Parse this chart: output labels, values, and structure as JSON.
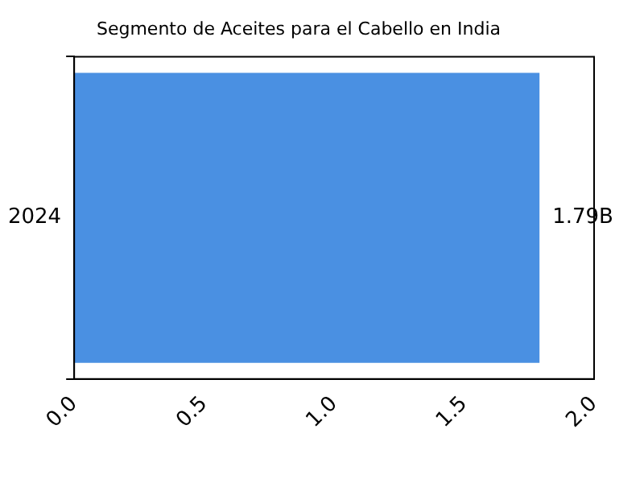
{
  "chart_data": {
    "type": "bar",
    "orientation": "horizontal",
    "title": "Segmento de Aceites para el Cabello en India",
    "categories": [
      "2024"
    ],
    "values": [
      1.79
    ],
    "color": "#4a90e2",
    "value_labels": [
      "1.79B"
    ],
    "xlim": [
      0,
      2
    ],
    "xticks": [
      {
        "value": 0,
        "label": "0.0"
      },
      {
        "value": 0.5,
        "label": "0.5"
      },
      {
        "value": 1,
        "label": "1.0"
      },
      {
        "value": 1.5,
        "label": "1.5"
      },
      {
        "value": 2,
        "label": "2.0"
      }
    ],
    "grid": false
  }
}
